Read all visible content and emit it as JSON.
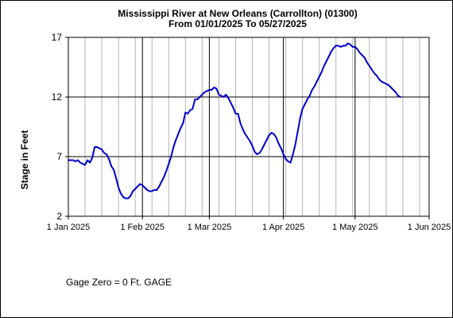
{
  "chart_data": {
    "type": "line",
    "title": "Mississippi River at New Orleans (Carrollton) (01300)",
    "subtitle": "From 01/01/2025 To 05/27/2025",
    "ylabel": "Stage in Feet",
    "xlabel": "",
    "ylim": [
      2,
      17
    ],
    "xlim": [
      "2025-01-01",
      "2025-06-01"
    ],
    "y_ticks": [
      "2",
      "7",
      "12",
      "17"
    ],
    "x_ticks": [
      {
        "date": "2025-01-01",
        "label": "1 Jan 2025"
      },
      {
        "date": "2025-02-01",
        "label": "1 Feb 2025"
      },
      {
        "date": "2025-03-01",
        "label": "1 Mar 2025"
      },
      {
        "date": "2025-04-01",
        "label": "1 Apr 2025"
      },
      {
        "date": "2025-05-01",
        "label": "1 May 2025"
      },
      {
        "date": "2025-06-01",
        "label": "1 Jun 2025"
      }
    ],
    "grid": true,
    "series_color": "#0000cc",
    "series": [
      {
        "name": "",
        "points": [
          [
            "2025-01-01",
            6.7
          ],
          [
            "2025-01-02",
            6.7
          ],
          [
            "2025-01-03",
            6.7
          ],
          [
            "2025-01-04",
            6.6
          ],
          [
            "2025-01-05",
            6.7
          ],
          [
            "2025-01-06",
            6.5
          ],
          [
            "2025-01-07",
            6.4
          ],
          [
            "2025-01-08",
            6.3
          ],
          [
            "2025-01-09",
            6.7
          ],
          [
            "2025-01-10",
            6.5
          ],
          [
            "2025-01-11",
            6.9
          ],
          [
            "2025-01-12",
            7.8
          ],
          [
            "2025-01-13",
            7.8
          ],
          [
            "2025-01-14",
            7.7
          ],
          [
            "2025-01-15",
            7.6
          ],
          [
            "2025-01-16",
            7.3
          ],
          [
            "2025-01-17",
            7.2
          ],
          [
            "2025-01-18",
            6.8
          ],
          [
            "2025-01-19",
            6.2
          ],
          [
            "2025-01-20",
            5.9
          ],
          [
            "2025-01-21",
            5.2
          ],
          [
            "2025-01-22",
            4.4
          ],
          [
            "2025-01-23",
            3.9
          ],
          [
            "2025-01-24",
            3.6
          ],
          [
            "2025-01-25",
            3.5
          ],
          [
            "2025-01-26",
            3.5
          ],
          [
            "2025-01-27",
            3.7
          ],
          [
            "2025-01-28",
            4.1
          ],
          [
            "2025-01-29",
            4.3
          ],
          [
            "2025-01-30",
            4.5
          ],
          [
            "2025-01-31",
            4.7
          ],
          [
            "2025-02-01",
            4.6
          ],
          [
            "2025-02-02",
            4.4
          ],
          [
            "2025-02-03",
            4.2
          ],
          [
            "2025-02-04",
            4.1
          ],
          [
            "2025-02-05",
            4.1
          ],
          [
            "2025-02-06",
            4.2
          ],
          [
            "2025-02-07",
            4.2
          ],
          [
            "2025-02-08",
            4.5
          ],
          [
            "2025-02-09",
            4.9
          ],
          [
            "2025-02-10",
            5.3
          ],
          [
            "2025-02-11",
            5.8
          ],
          [
            "2025-02-12",
            6.4
          ],
          [
            "2025-02-13",
            7.0
          ],
          [
            "2025-02-14",
            7.8
          ],
          [
            "2025-02-15",
            8.4
          ],
          [
            "2025-02-16",
            8.9
          ],
          [
            "2025-02-17",
            9.4
          ],
          [
            "2025-02-18",
            9.8
          ],
          [
            "2025-02-19",
            10.7
          ],
          [
            "2025-02-20",
            10.6
          ],
          [
            "2025-02-21",
            10.9
          ],
          [
            "2025-02-22",
            11.0
          ],
          [
            "2025-02-23",
            11.8
          ],
          [
            "2025-02-24",
            11.8
          ],
          [
            "2025-02-25",
            12.0
          ],
          [
            "2025-02-26",
            12.2
          ],
          [
            "2025-02-27",
            12.4
          ],
          [
            "2025-02-28",
            12.5
          ],
          [
            "2025-03-01",
            12.6
          ],
          [
            "2025-03-02",
            12.6
          ],
          [
            "2025-03-03",
            12.8
          ],
          [
            "2025-03-04",
            12.7
          ],
          [
            "2025-03-05",
            12.2
          ],
          [
            "2025-03-06",
            12.1
          ],
          [
            "2025-03-07",
            12.0
          ],
          [
            "2025-03-08",
            12.2
          ],
          [
            "2025-03-09",
            11.9
          ],
          [
            "2025-03-10",
            11.5
          ],
          [
            "2025-03-11",
            11.1
          ],
          [
            "2025-03-12",
            10.6
          ],
          [
            "2025-03-13",
            10.6
          ],
          [
            "2025-03-14",
            9.8
          ],
          [
            "2025-03-15",
            9.3
          ],
          [
            "2025-03-16",
            8.9
          ],
          [
            "2025-03-17",
            8.6
          ],
          [
            "2025-03-18",
            8.3
          ],
          [
            "2025-03-19",
            7.9
          ],
          [
            "2025-03-20",
            7.4
          ],
          [
            "2025-03-21",
            7.2
          ],
          [
            "2025-03-22",
            7.3
          ],
          [
            "2025-03-23",
            7.6
          ],
          [
            "2025-03-24",
            8.0
          ],
          [
            "2025-03-25",
            8.4
          ],
          [
            "2025-03-26",
            8.8
          ],
          [
            "2025-03-27",
            9.0
          ],
          [
            "2025-03-28",
            8.9
          ],
          [
            "2025-03-29",
            8.6
          ],
          [
            "2025-03-30",
            8.1
          ],
          [
            "2025-03-31",
            7.7
          ],
          [
            "2025-04-01",
            7.2
          ],
          [
            "2025-04-02",
            6.8
          ],
          [
            "2025-04-03",
            6.6
          ],
          [
            "2025-04-04",
            6.5
          ],
          [
            "2025-04-05",
            7.2
          ],
          [
            "2025-04-06",
            8.0
          ],
          [
            "2025-04-07",
            9.1
          ],
          [
            "2025-04-08",
            10.2
          ],
          [
            "2025-04-09",
            11.0
          ],
          [
            "2025-04-10",
            11.4
          ],
          [
            "2025-04-11",
            11.8
          ],
          [
            "2025-04-12",
            12.1
          ],
          [
            "2025-04-13",
            12.6
          ],
          [
            "2025-04-14",
            12.9
          ],
          [
            "2025-04-15",
            13.3
          ],
          [
            "2025-04-16",
            13.7
          ],
          [
            "2025-04-17",
            14.1
          ],
          [
            "2025-04-18",
            14.6
          ],
          [
            "2025-04-19",
            15.0
          ],
          [
            "2025-04-20",
            15.4
          ],
          [
            "2025-04-21",
            15.8
          ],
          [
            "2025-04-22",
            16.1
          ],
          [
            "2025-04-23",
            16.3
          ],
          [
            "2025-04-24",
            16.3
          ],
          [
            "2025-04-25",
            16.2
          ],
          [
            "2025-04-26",
            16.3
          ],
          [
            "2025-04-27",
            16.3
          ],
          [
            "2025-04-28",
            16.5
          ],
          [
            "2025-04-29",
            16.4
          ],
          [
            "2025-04-30",
            16.2
          ],
          [
            "2025-05-01",
            16.2
          ],
          [
            "2025-05-02",
            16.0
          ],
          [
            "2025-05-03",
            15.7
          ],
          [
            "2025-05-04",
            15.5
          ],
          [
            "2025-05-05",
            15.3
          ],
          [
            "2025-05-06",
            14.9
          ],
          [
            "2025-05-07",
            14.6
          ],
          [
            "2025-05-08",
            14.3
          ],
          [
            "2025-05-09",
            14.0
          ],
          [
            "2025-05-10",
            13.8
          ],
          [
            "2025-05-11",
            13.5
          ],
          [
            "2025-05-12",
            13.3
          ],
          [
            "2025-05-13",
            13.2
          ],
          [
            "2025-05-14",
            13.1
          ],
          [
            "2025-05-15",
            13.0
          ],
          [
            "2025-05-16",
            12.8
          ],
          [
            "2025-05-17",
            12.6
          ],
          [
            "2025-05-18",
            12.4
          ],
          [
            "2025-05-19",
            12.1
          ],
          [
            "2025-05-20",
            12.0
          ]
        ]
      }
    ]
  },
  "footer": {
    "gage_zero": "Gage Zero = 0 Ft. GAGE"
  }
}
